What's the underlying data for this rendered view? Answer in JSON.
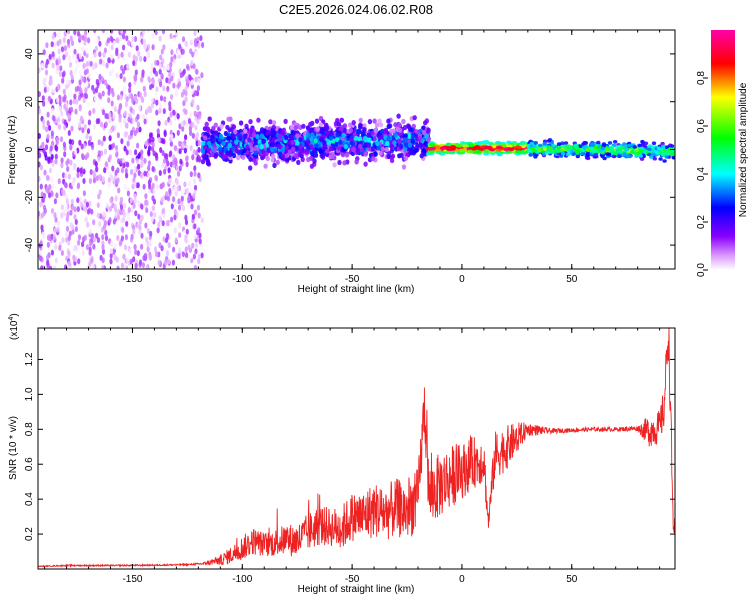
{
  "title": "C2E5.2026.024.06.02.R08",
  "colors": {
    "snr_line": "#ee2222",
    "axis": "#000000",
    "background": "#ffffff"
  },
  "chart_data": [
    {
      "type": "heatmap",
      "title": "C2E5.2026.024.06.02.R08",
      "xlabel": "Height of straight line (km)",
      "ylabel": "Frequency (Hz)",
      "xlim": [
        -193,
        97
      ],
      "ylim": [
        -50,
        50
      ],
      "x_ticks": [
        -150,
        -100,
        -50,
        0,
        50
      ],
      "x_tick_labels": [
        "-150",
        "-100",
        "-50",
        "0",
        "50"
      ],
      "y_ticks": [
        -40,
        -20,
        0,
        20,
        40
      ],
      "y_tick_labels": [
        "-40",
        "-20",
        "0",
        "20",
        "40"
      ],
      "colorbar": {
        "label": "Normalized spectral amplitude",
        "range": [
          0,
          1
        ],
        "ticks": [
          0.0,
          0.2,
          0.4,
          0.6,
          0.8
        ],
        "tick_labels": [
          "0.0",
          "0.2",
          "0.4",
          "0.6",
          "0.8"
        ],
        "colormap": [
          "#ffffff",
          "#8800ff",
          "#0000ff",
          "#00ffff",
          "#00ff00",
          "#ffff00",
          "#ff0000",
          "#ff00ff"
        ]
      },
      "regions": [
        {
          "x_range": [
            -193,
            -118
          ],
          "freq_range": [
            -50,
            50
          ],
          "amplitude": [
            0.0,
            0.12
          ],
          "description_kind": "broadband noise"
        },
        {
          "x_range": [
            -118,
            -15
          ],
          "freq_center": [
            2,
            4
          ],
          "freq_spread": 8,
          "amplitude": [
            0.1,
            0.45
          ]
        },
        {
          "x_range": [
            -15,
            30
          ],
          "freq_center": [
            0.5,
            0.5
          ],
          "freq_spread": 2,
          "amplitude": [
            0.85,
            1.0
          ]
        },
        {
          "x_range": [
            30,
            97
          ],
          "freq_center": [
            0.5,
            -1
          ],
          "freq_spread": 3,
          "amplitude": [
            0.35,
            0.7
          ]
        }
      ]
    },
    {
      "type": "line",
      "xlabel": "Height of straight line (km)",
      "ylabel": "SNR (10 * v/v)",
      "y_multiplier": "(x10",
      "y_multiplier_exp": "4",
      "y_multiplier_close": ")",
      "xlim": [
        -193,
        97
      ],
      "ylim": [
        0,
        13800
      ],
      "x_ticks": [
        -150,
        -100,
        -50,
        0,
        50
      ],
      "x_tick_labels": [
        "-150",
        "-100",
        "-50",
        "0",
        "50"
      ],
      "y_ticks": [
        2000,
        4000,
        6000,
        8000,
        10000,
        12000
      ],
      "y_tick_labels": [
        "0.2",
        "0.4",
        "0.6",
        "0.8",
        "1.0",
        "1.2"
      ],
      "series": [
        {
          "name": "SNR",
          "x": [
            -193,
            -180,
            -160,
            -140,
            -125,
            -118,
            -110,
            -105,
            -100,
            -95,
            -90,
            -85,
            -80,
            -75,
            -70,
            -65,
            -60,
            -55,
            -50,
            -45,
            -40,
            -35,
            -30,
            -25,
            -20,
            -17,
            -15,
            -10,
            -5,
            0,
            5,
            10,
            12,
            15,
            20,
            25,
            30,
            40,
            50,
            60,
            70,
            80,
            85,
            90,
            92,
            94,
            95,
            96,
            97
          ],
          "values": [
            150,
            200,
            200,
            220,
            250,
            300,
            500,
            800,
            1200,
            1600,
            1400,
            1500,
            1700,
            1600,
            2100,
            2500,
            2400,
            2300,
            3000,
            3000,
            3400,
            3200,
            3500,
            3300,
            4000,
            9400,
            4200,
            4800,
            5300,
            5600,
            6100,
            6300,
            2600,
            6500,
            6900,
            7500,
            8000,
            7900,
            7950,
            8000,
            8000,
            8050,
            7900,
            8100,
            9200,
            13800,
            9000,
            3200,
            1900
          ],
          "noise_amplitude": [
            20,
            40,
            40,
            40,
            40,
            60,
            300,
            500,
            700,
            800,
            700,
            800,
            900,
            1000,
            1100,
            1200,
            1100,
            1300,
            1400,
            1500,
            1600,
            1600,
            1700,
            1700,
            1800,
            1800,
            1800,
            1900,
            1800,
            1600,
            1500,
            1400,
            600,
            1400,
            1300,
            900,
            400,
            150,
            120,
            120,
            120,
            150,
            900,
            1000,
            1200,
            1500,
            1500,
            1000,
            800
          ]
        }
      ]
    }
  ]
}
